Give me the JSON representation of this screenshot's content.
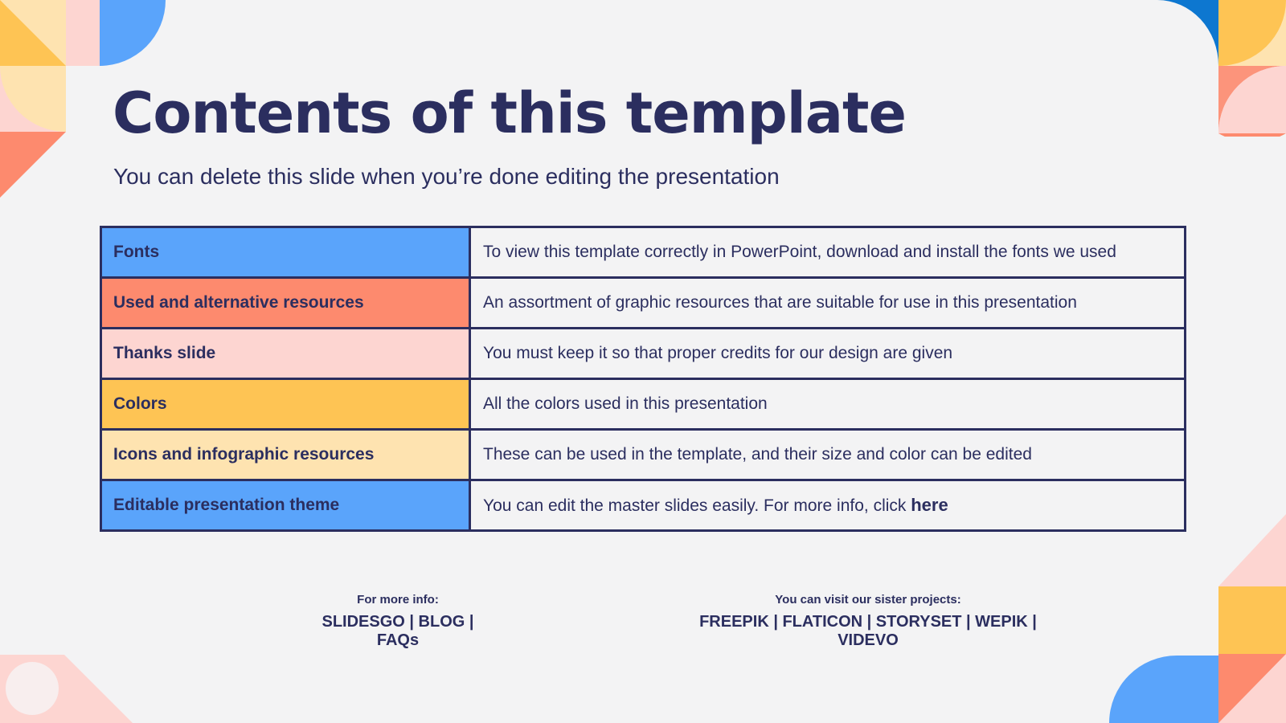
{
  "title": "Contents of this template",
  "subtitle": "You can delete this slide when you’re done editing the presentation",
  "rows": [
    {
      "key": "Fonts",
      "value": "To view this template correctly in PowerPoint, download and install the fonts we used",
      "color": "#5aa4fb"
    },
    {
      "key": "Used and alternative resources",
      "value": "An assortment of graphic resources that are suitable for use in this presentation",
      "color": "#fd8a6e"
    },
    {
      "key": "Thanks slide",
      "value": "You must keep it so that proper credits for our design are given",
      "color": "#fdd5d1"
    },
    {
      "key": "Colors",
      "value": "All the colors used in this presentation",
      "color": "#fec454"
    },
    {
      "key": "Icons and infographic resources",
      "value": "These can be used in the template, and their size and color can be edited",
      "color": "#fee3b0"
    },
    {
      "key": "Editable presentation theme",
      "value": "You can edit the master slides easily. For more info, click ",
      "link": "here",
      "color": "#5aa4fb"
    }
  ],
  "footer": {
    "left_label": "For more info:",
    "left_links": "SLIDESGO | BLOG | FAQs",
    "right_label": "You can visit our sister projects:",
    "right_links": "FREEPIK | FLATICON | STORYSET | WEPIK | VIDEVO"
  },
  "colors": {
    "navy": "#2b2e5f",
    "blue": "#5aa4fb",
    "coral": "#fd8a6e",
    "pink": "#fdd5d1",
    "yellow": "#fec454",
    "cream": "#fee3b0",
    "background": "#f3f3f4"
  }
}
